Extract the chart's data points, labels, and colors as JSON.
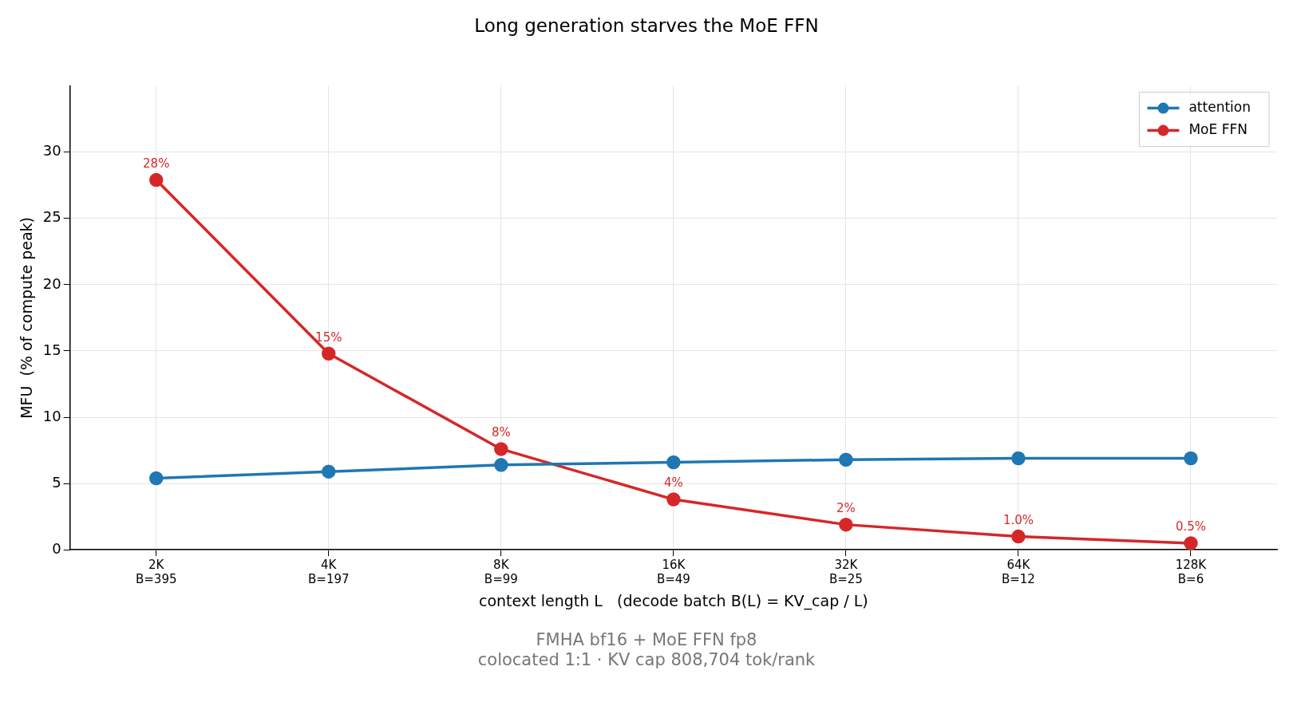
{
  "chart_data": {
    "type": "line",
    "title": "Long generation starves the MoE FFN",
    "xlabel": "context length L   (decode batch B(L) = KV_cap / L)",
    "ylabel": "MFU  (% of compute peak)",
    "categories": [
      "2K\nB=395",
      "4K\nB=197",
      "8K\nB=99",
      "16K\nB=49",
      "32K\nB=25",
      "64K\nB=12",
      "128K\nB=6"
    ],
    "series": [
      {
        "name": "attention",
        "color": "#1f77b4",
        "values": [
          5.4,
          5.9,
          6.4,
          6.6,
          6.8,
          6.9,
          6.9
        ]
      },
      {
        "name": "MoE FFN",
        "color": "#d62728",
        "values": [
          27.9,
          14.8,
          7.6,
          3.8,
          1.9,
          1.0,
          0.5
        ],
        "value_labels": [
          "28%",
          "15%",
          "8%",
          "4%",
          "2%",
          "1.0%",
          "0.5%"
        ]
      }
    ],
    "ylim": [
      0,
      35
    ],
    "yticks": [
      0,
      5,
      10,
      15,
      20,
      25,
      30
    ],
    "grid": true,
    "legend": "top right",
    "marker": "circle",
    "line_style": "solid",
    "annotations": [
      "FMHA bf16 + MoE FFN fp8",
      "colocated 1:1 · KV cap 808,704 tok/rank"
    ]
  }
}
